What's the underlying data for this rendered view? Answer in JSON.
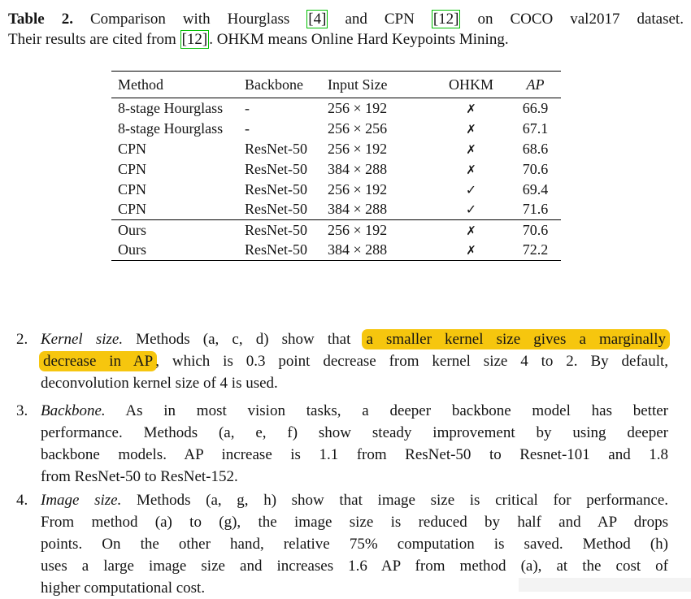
{
  "colors": {
    "highlight": "#F6C60E",
    "cite-border": "#00BE00",
    "text": "#141414",
    "rule": "#000000",
    "artifact": "#f3f3f3"
  },
  "caption": {
    "lines": [
      [
        {
          "text": "Table 2.",
          "style": "bold"
        },
        {
          "text": " Comparison with Hourglass ",
          "style": ""
        },
        {
          "text": "[4]",
          "style": "cite"
        },
        {
          "text": " and CPN ",
          "style": ""
        },
        {
          "text": "[12]",
          "style": "cite"
        },
        {
          "text": " on COCO val2017 dataset.",
          "style": ""
        }
      ],
      [
        {
          "text": "Their results are cited from ",
          "style": ""
        },
        {
          "text": "[12]",
          "style": "cite"
        },
        {
          "text": ". OHKM means Online Hard Keypoints Mining.",
          "style": ""
        }
      ]
    ]
  },
  "table": {
    "columns": [
      "Method",
      "Backbone",
      "Input Size",
      "OHKM",
      "AP"
    ],
    "rows": [
      [
        "8-stage Hourglass",
        "-",
        "256 × 192",
        "✗",
        "66.9"
      ],
      [
        "8-stage Hourglass",
        "-",
        "256 × 256",
        "✗",
        "67.1"
      ],
      [
        "CPN",
        "ResNet-50",
        "256 × 192",
        "✗",
        "68.6"
      ],
      [
        "CPN",
        "ResNet-50",
        "384 × 288",
        "✗",
        "70.6"
      ],
      [
        "CPN",
        "ResNet-50",
        "256 × 192",
        "✓",
        "69.4"
      ],
      [
        "CPN",
        "ResNet-50",
        "384 × 288",
        "✓",
        "71.6"
      ],
      [
        "Ours",
        "ResNet-50",
        "256 × 192",
        "✗",
        "70.6"
      ],
      [
        "Ours",
        "ResNet-50",
        "384 × 288",
        "✗",
        "72.2"
      ]
    ],
    "group_break_index": 6
  },
  "items": [
    {
      "number": "2.",
      "lines": [
        [
          {
            "text": "Kernel size.",
            "style": "italic"
          },
          {
            "text": " Methods (a, c, d) show that ",
            "style": ""
          },
          {
            "text": "a smaller kernel size gives a marginally",
            "style": "highlight"
          }
        ],
        [
          {
            "text": "decrease in AP",
            "style": "highlight"
          },
          {
            "text": ", which is 0.3 point decrease from kernel size 4 to 2. By default,",
            "style": ""
          }
        ],
        [
          {
            "text": "deconvolution kernel size of 4 is used.",
            "style": ""
          }
        ]
      ]
    },
    {
      "number": "3.",
      "lines": [
        [
          {
            "text": "Backbone.",
            "style": "italic"
          },
          {
            "text": " As in most vision tasks, a deeper backbone model has better",
            "style": ""
          }
        ],
        [
          {
            "text": "performance. Methods (a, e, f) show steady improvement by using deeper",
            "style": ""
          }
        ],
        [
          {
            "text": "backbone models. AP increase is 1.1 from ResNet-50 to Resnet-101 and 1.8",
            "style": ""
          }
        ],
        [
          {
            "text": "from ResNet-50 to ResNet-152.",
            "style": ""
          }
        ]
      ]
    },
    {
      "number": "4.",
      "lines": [
        [
          {
            "text": "Image size.",
            "style": "italic"
          },
          {
            "text": " Methods (a, g, h) show that image size is critical for performance.",
            "style": ""
          }
        ],
        [
          {
            "text": "From method (a) to (g), the image size is reduced by half and AP drops",
            "style": ""
          }
        ],
        [
          {
            "text": "points. On the other hand, relative 75% computation is saved. Method (h)",
            "style": ""
          }
        ],
        [
          {
            "text": "uses a large image size and increases 1.6 AP from method (a), at the cost of",
            "style": ""
          }
        ],
        [
          {
            "text": "higher computational cost.",
            "style": ""
          }
        ]
      ]
    }
  ]
}
